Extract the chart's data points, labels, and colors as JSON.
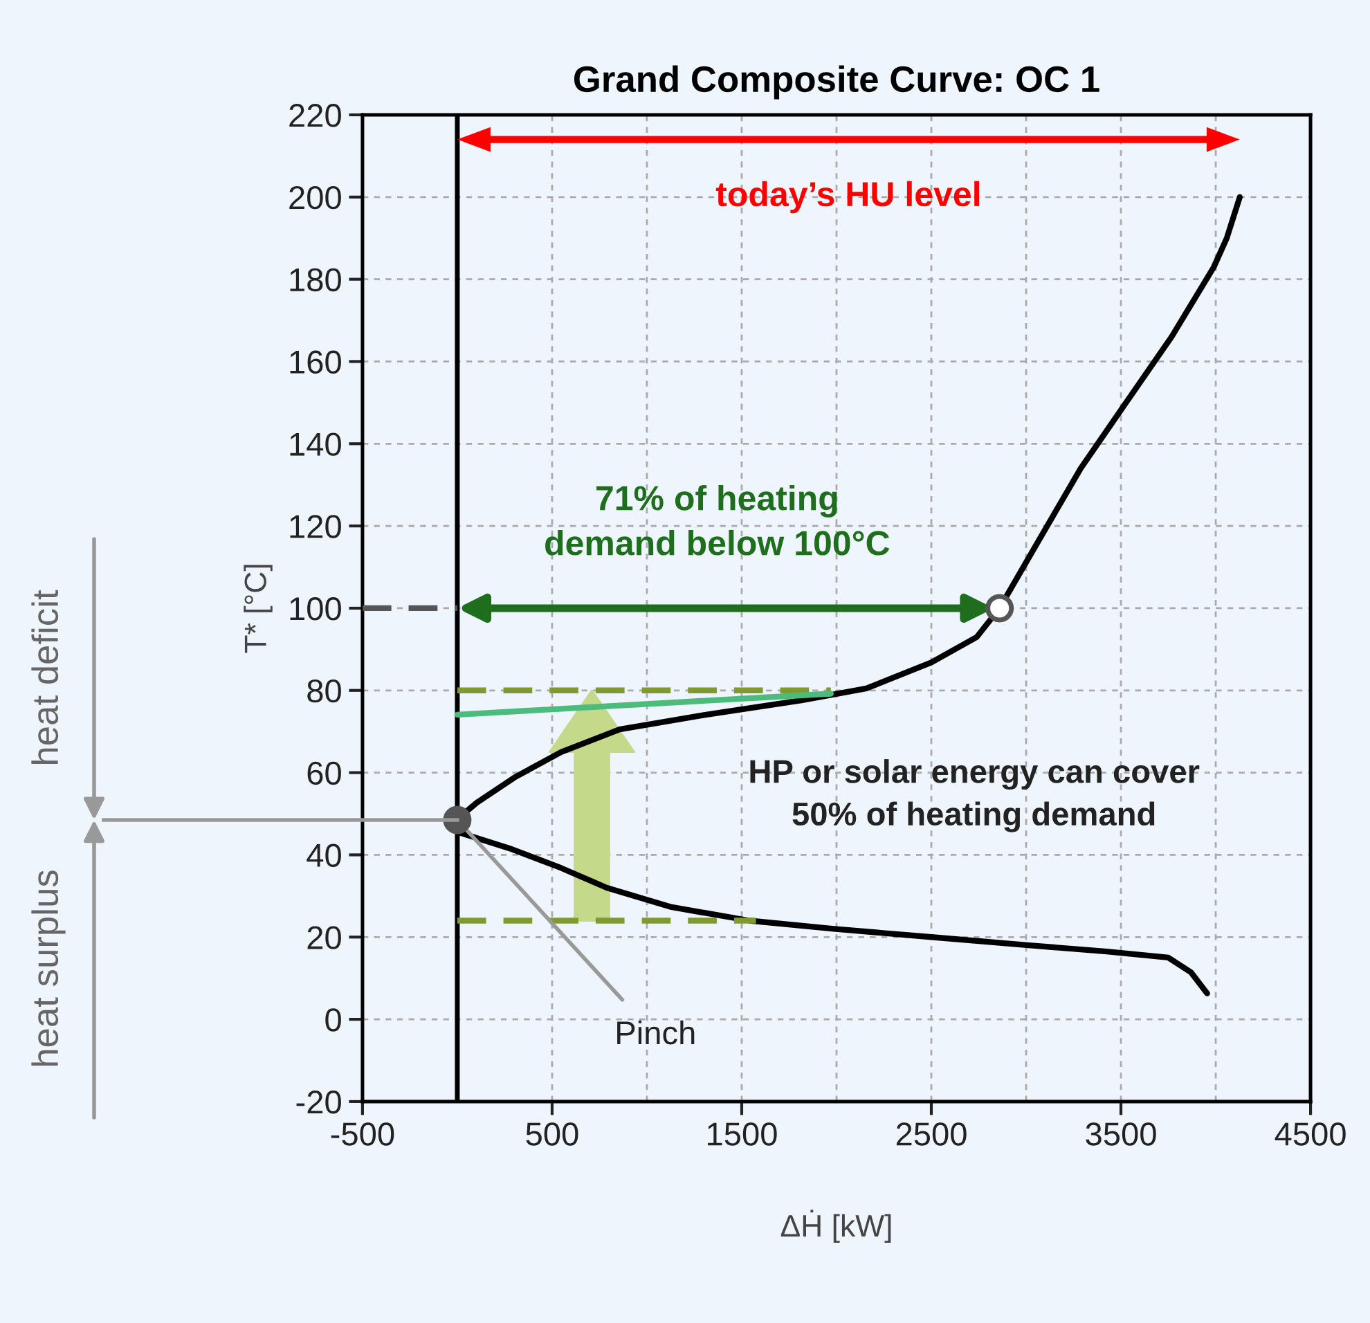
{
  "chart_data": {
    "type": "line",
    "title": "Grand Composite Curve: OC 1",
    "xlabel": "ΔḢ [kW]",
    "ylabel": "T* [°C]",
    "xlim": [
      -500,
      4500
    ],
    "xticks": [
      -500,
      {
        "value": 0,
        "label": null
      },
      500,
      {
        "value": 1000,
        "label": null
      },
      1500,
      {
        "value": 2000,
        "label": null
      },
      2500,
      {
        "value": 3000,
        "label": null
      },
      3500,
      {
        "value": 4000,
        "label": null
      },
      4500
    ],
    "ylim": [
      -20,
      220
    ],
    "yticks": [
      -20,
      0,
      20,
      40,
      60,
      80,
      100,
      120,
      140,
      160,
      180,
      200,
      220
    ],
    "grid": true,
    "legend": false,
    "ref_lines": [
      {
        "axis": "x",
        "value": 0,
        "color": "#000000",
        "line_style": "solid"
      }
    ],
    "series": [
      {
        "color": "#000000",
        "line_style": "solid",
        "x": [
          0,
          103,
          308,
          548,
          856,
          1301,
          1815,
          2158,
          2500,
          2740,
          2860,
          3048,
          3288,
          3527,
          3767,
          3990,
          4058,
          4127
        ],
        "values": [
          48.7,
          52.7,
          59,
          65,
          70.5,
          74,
          77.6,
          80.5,
          86.8,
          93,
          100,
          115,
          134,
          150,
          166,
          183,
          190,
          200
        ]
      },
      {
        "color": "#000000",
        "line_style": "solid",
        "x": [
          0,
          274,
          548,
          788,
          1130,
          1541,
          1986,
          2500,
          3014,
          3425,
          3750,
          3870,
          3955
        ],
        "values": [
          45.6,
          41.6,
          36.8,
          32,
          27.3,
          24,
          22,
          20,
          18,
          16.5,
          15,
          11.4,
          6.3
        ]
      },
      {
        "color": "#7f9a2e",
        "line_style": "dashed",
        "x": [
          0,
          1970
        ],
        "values": [
          80,
          80
        ]
      },
      {
        "color": "#7f9a2e",
        "line_style": "dashed",
        "x": [
          0,
          1575
        ],
        "values": [
          24,
          24
        ]
      },
      {
        "color": "#4cbc7c",
        "line_style": "solid",
        "x": [
          0,
          1970
        ],
        "values": [
          74.1,
          79.2
        ]
      },
      {
        "color": "#555555",
        "line_style": "dashed",
        "x": [
          -500,
          0
        ],
        "values": [
          100,
          100
        ]
      },
      {
        "type": "scatter",
        "color": "#ffffff",
        "marker": "circle",
        "x": [
          2860
        ],
        "values": [
          100
        ]
      },
      {
        "type": "scatter",
        "color": "#555555",
        "marker": "circle",
        "x": [
          0
        ],
        "values": [
          48.5
        ]
      }
    ],
    "annotations": [
      "today’s HU level",
      "71% of heating\ndemand below 100°C",
      "HP or solar energy can cover\n50% of heating demand",
      {
        "text": "Pinch",
        "x": 0,
        "y": 48.5
      },
      "heat deficit",
      "heat surplus"
    ]
  }
}
